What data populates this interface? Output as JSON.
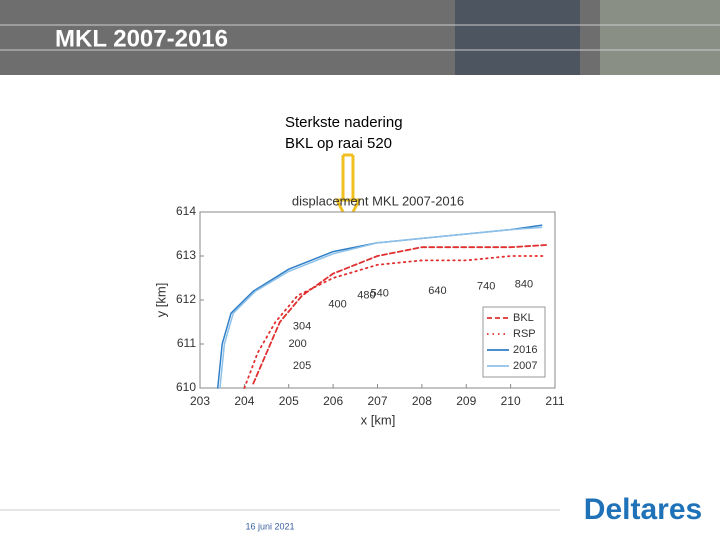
{
  "header": {
    "title": "MKL 2007-2016"
  },
  "annotation": {
    "lines": [
      "Sterkste nadering",
      "BKL op raai 520"
    ]
  },
  "chart_data": {
    "type": "line",
    "title": "displacement MKL 2007-2016",
    "xlabel": "x [km]",
    "ylabel": "y [km]",
    "xlim": [
      203,
      211
    ],
    "ylim": [
      610,
      614
    ],
    "xticks": [
      203,
      204,
      205,
      206,
      207,
      208,
      209,
      210,
      211
    ],
    "yticks": [
      610,
      611,
      612,
      613,
      614
    ],
    "legend": "lower right",
    "series": [
      {
        "name": "BKL",
        "color": "#e03030",
        "style": "dashed",
        "x": [
          204.2,
          204.5,
          204.8,
          205.3,
          206,
          207,
          208,
          209,
          210,
          210.8
        ],
        "values": [
          610.1,
          610.8,
          611.5,
          612.1,
          612.6,
          613,
          613.2,
          613.2,
          613.2,
          613.25
        ]
      },
      {
        "name": "RSP",
        "color": "#e03030",
        "style": "dotted",
        "x": [
          204,
          204.3,
          204.7,
          205.2,
          206,
          207,
          208,
          209,
          210,
          210.8
        ],
        "values": [
          610,
          610.8,
          611.5,
          612.1,
          612.5,
          612.8,
          612.9,
          612.9,
          613,
          613
        ]
      },
      {
        "name": "2016",
        "color": "#2f7fc8",
        "style": "solid",
        "x": [
          203.4,
          203.5,
          203.7,
          204.2,
          205,
          206,
          207,
          208,
          209,
          210,
          210.7
        ],
        "values": [
          610,
          611,
          611.7,
          612.2,
          612.7,
          613.1,
          613.3,
          613.4,
          613.5,
          613.6,
          613.7
        ]
      },
      {
        "name": "2007",
        "color": "#8ec0e8",
        "style": "solid",
        "x": [
          203.45,
          203.55,
          203.75,
          204.25,
          205,
          206,
          207,
          208,
          209,
          210,
          210.7
        ],
        "values": [
          610,
          611,
          611.7,
          612.2,
          612.65,
          613.05,
          613.3,
          613.4,
          613.5,
          613.6,
          613.65
        ]
      }
    ],
    "annotations": [
      {
        "text": "304",
        "x": 205.3,
        "y": 611.4
      },
      {
        "text": "200",
        "x": 205.2,
        "y": 611
      },
      {
        "text": "205",
        "x": 205.3,
        "y": 610.5
      },
      {
        "text": "400",
        "x": 206.1,
        "y": 611.9
      },
      {
        "text": "480",
        "x": 206.75,
        "y": 612.1
      },
      {
        "text": "540",
        "x": 207.05,
        "y": 612.15
      },
      {
        "text": "640",
        "x": 208.35,
        "y": 612.2
      },
      {
        "text": "740",
        "x": 209.45,
        "y": 612.3
      },
      {
        "text": "840",
        "x": 210.3,
        "y": 612.35
      }
    ]
  },
  "footer": {
    "date": "16 juni 2021",
    "logo": "Deltares"
  }
}
